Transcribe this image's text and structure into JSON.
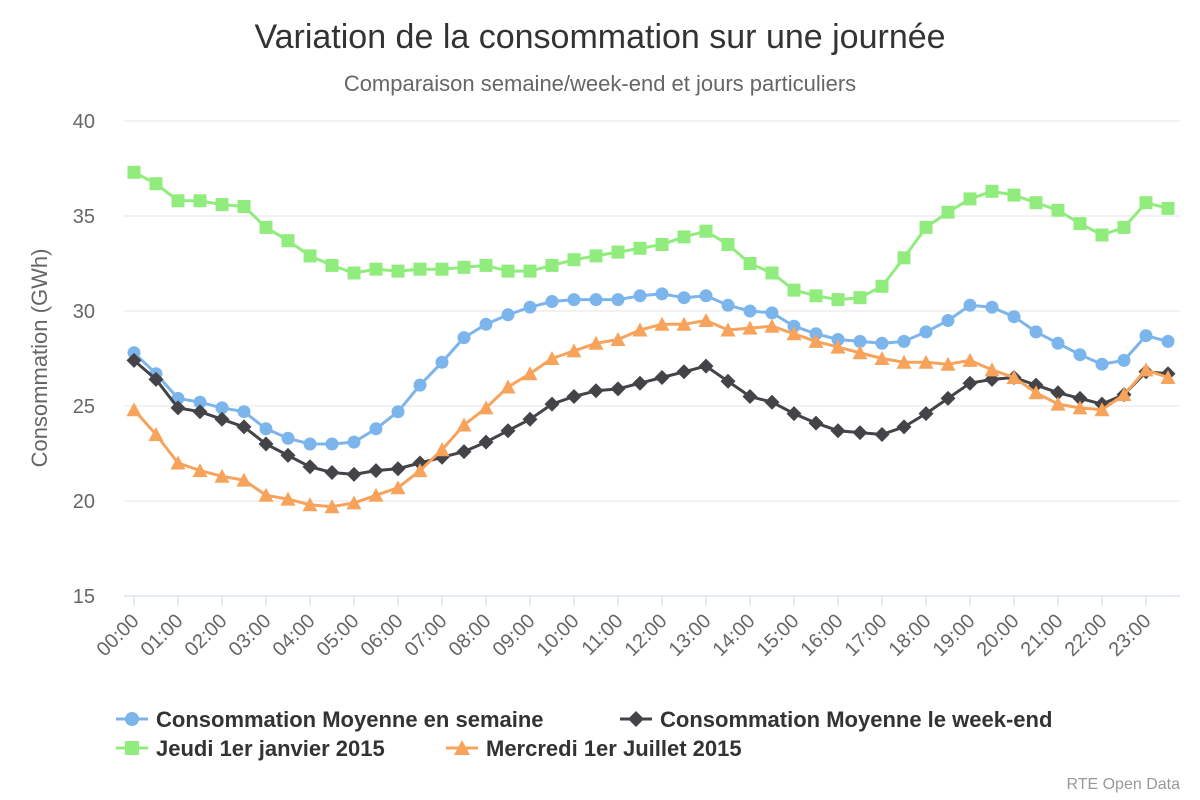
{
  "chart_data": {
    "type": "line",
    "title": "Variation de la consommation sur une journée",
    "subtitle": "Comparaison semaine/week-end et jours particuliers",
    "ylabel": "Consommation (GWh)",
    "ylim": [
      15,
      40
    ],
    "yticks": [
      "15",
      "20",
      "25",
      "30",
      "35",
      "40"
    ],
    "xtick_labels": [
      "00:00",
      "01:00",
      "02:00",
      "03:00",
      "04:00",
      "05:00",
      "06:00",
      "07:00",
      "08:00",
      "09:00",
      "10:00",
      "11:00",
      "12:00",
      "13:00",
      "14:00",
      "15:00",
      "16:00",
      "17:00",
      "18:00",
      "19:00",
      "20:00",
      "21:00",
      "22:00",
      "23:00"
    ],
    "x": [
      "00:00",
      "00:30",
      "01:00",
      "01:30",
      "02:00",
      "02:30",
      "03:00",
      "03:30",
      "04:00",
      "04:30",
      "05:00",
      "05:30",
      "06:00",
      "06:30",
      "07:00",
      "07:30",
      "08:00",
      "08:30",
      "09:00",
      "09:30",
      "10:00",
      "10:30",
      "11:00",
      "11:30",
      "12:00",
      "12:30",
      "13:00",
      "13:30",
      "14:00",
      "14:30",
      "15:00",
      "15:30",
      "16:00",
      "16:30",
      "17:00",
      "17:30",
      "18:00",
      "18:30",
      "19:00",
      "19:30",
      "20:00",
      "20:30",
      "21:00",
      "21:30",
      "22:00",
      "22:30",
      "23:00",
      "23:30"
    ],
    "grid": true,
    "legend_position": "bottom",
    "credits": "RTE Open Data",
    "series": [
      {
        "name": "Consommation Moyenne en semaine",
        "color": "#7cb5ec",
        "marker": "circle",
        "values": [
          27.8,
          26.7,
          25.4,
          25.2,
          24.9,
          24.7,
          23.8,
          23.3,
          23.0,
          23.0,
          23.1,
          23.8,
          24.7,
          26.1,
          27.3,
          28.6,
          29.3,
          29.8,
          30.2,
          30.5,
          30.6,
          30.6,
          30.6,
          30.8,
          30.9,
          30.7,
          30.8,
          30.3,
          30.0,
          29.9,
          29.2,
          28.8,
          28.5,
          28.4,
          28.3,
          28.4,
          28.9,
          29.5,
          30.3,
          30.2,
          29.7,
          28.9,
          28.3,
          27.7,
          27.2,
          27.4,
          28.7,
          28.4
        ]
      },
      {
        "name": "Consommation Moyenne le week-end",
        "color": "#434348",
        "marker": "diamond",
        "values": [
          27.4,
          26.4,
          24.9,
          24.7,
          24.3,
          23.9,
          23.0,
          22.4,
          21.8,
          21.5,
          21.4,
          21.6,
          21.7,
          22.0,
          22.3,
          22.6,
          23.1,
          23.7,
          24.3,
          25.1,
          25.5,
          25.8,
          25.9,
          26.2,
          26.5,
          26.8,
          27.1,
          26.3,
          25.5,
          25.2,
          24.6,
          24.1,
          23.7,
          23.6,
          23.5,
          23.9,
          24.6,
          25.4,
          26.2,
          26.4,
          26.5,
          26.1,
          25.7,
          25.4,
          25.1,
          25.6,
          26.8,
          26.7
        ]
      },
      {
        "name": "Jeudi 1er janvier 2015",
        "color": "#90ed7d",
        "marker": "square",
        "values": [
          37.3,
          36.7,
          35.8,
          35.8,
          35.6,
          35.5,
          34.4,
          33.7,
          32.9,
          32.4,
          32.0,
          32.2,
          32.1,
          32.2,
          32.2,
          32.3,
          32.4,
          32.1,
          32.1,
          32.4,
          32.7,
          32.9,
          33.1,
          33.3,
          33.5,
          33.9,
          34.2,
          33.5,
          32.5,
          32.0,
          31.1,
          30.8,
          30.6,
          30.7,
          31.3,
          32.8,
          34.4,
          35.2,
          35.9,
          36.3,
          36.1,
          35.7,
          35.3,
          34.6,
          34.0,
          34.4,
          35.7,
          35.4
        ]
      },
      {
        "name": "Mercredi 1er Juillet 2015",
        "color": "#f7a35c",
        "marker": "triangle",
        "values": [
          24.8,
          23.5,
          22.0,
          21.6,
          21.3,
          21.1,
          20.3,
          20.1,
          19.8,
          19.7,
          19.9,
          20.3,
          20.7,
          21.6,
          22.7,
          24.0,
          24.9,
          26.0,
          26.7,
          27.5,
          27.9,
          28.3,
          28.5,
          29.0,
          29.3,
          29.3,
          29.5,
          29.0,
          29.1,
          29.2,
          28.8,
          28.4,
          28.1,
          27.8,
          27.5,
          27.3,
          27.3,
          27.2,
          27.4,
          26.9,
          26.5,
          25.7,
          25.1,
          24.9,
          24.8,
          25.6,
          26.9,
          26.5
        ]
      }
    ]
  }
}
